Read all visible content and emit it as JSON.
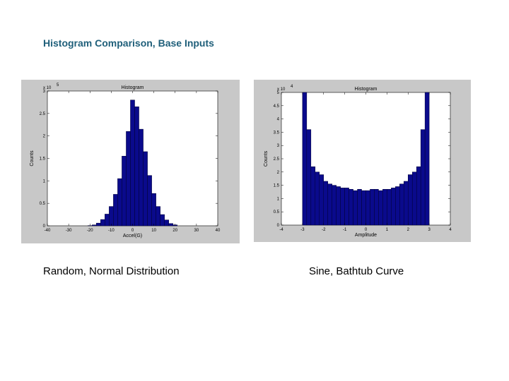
{
  "slide": {
    "title": "Histogram Comparison, Base Inputs",
    "caption_left": "Random, Normal Distribution",
    "caption_right": "Sine, Bathtub Curve"
  },
  "colors": {
    "bar_fill": "#0a0a8c",
    "bar_stroke": "#000033",
    "figure_bg": "#c8c8c8",
    "axes_bg": "#ffffff",
    "title_color": "#1f5f7a"
  },
  "chart_data": [
    {
      "type": "bar",
      "title": "Histogram",
      "xlabel": "Accel(G)",
      "ylabel": "Counts",
      "exponent_label": "x 10",
      "exponent_power": "5",
      "xlim": [
        -40,
        40
      ],
      "ylim": [
        0,
        3
      ],
      "xticks": [
        "-40",
        "-30",
        "-20",
        "-10",
        "0",
        "10",
        "20",
        "30",
        "40"
      ],
      "yticks": [
        "0",
        "0.5",
        "1",
        "1.5",
        "2",
        "2.5",
        "3"
      ],
      "bin_width": 2,
      "bin_centers": [
        -20,
        -18,
        -16,
        -14,
        -12,
        -10,
        -8,
        -6,
        -4,
        -2,
        0,
        2,
        4,
        6,
        8,
        10,
        12,
        14,
        16,
        18,
        20
      ],
      "values": [
        0.005,
        0.02,
        0.06,
        0.14,
        0.26,
        0.43,
        0.7,
        1.05,
        1.55,
        2.1,
        2.8,
        2.65,
        2.15,
        1.65,
        1.12,
        0.72,
        0.43,
        0.25,
        0.13,
        0.05,
        0.02
      ]
    },
    {
      "type": "bar",
      "title": "Histogram",
      "xlabel": "Amplitude",
      "ylabel": "Counts",
      "exponent_label": "x 10",
      "exponent_power": "4",
      "xlim": [
        -4,
        4
      ],
      "ylim": [
        0,
        5
      ],
      "xticks": [
        "-4",
        "-3",
        "-2",
        "-1",
        "0",
        "1",
        "2",
        "3",
        "4"
      ],
      "yticks": [
        "0",
        "0.5",
        "1",
        "1.5",
        "2",
        "2.5",
        "3",
        "3.5",
        "4",
        "4.5",
        "5"
      ],
      "bin_edges": [
        -3.0,
        -2.8,
        -2.6,
        -2.4,
        -2.2,
        -2.0,
        -1.8,
        -1.6,
        -1.4,
        -1.2,
        -1.0,
        -0.8,
        -0.6,
        -0.4,
        -0.2,
        0.0,
        0.2,
        0.4,
        0.6,
        0.8,
        1.0,
        1.2,
        1.4,
        1.6,
        1.8,
        2.0,
        2.2,
        2.4,
        2.6,
        2.8,
        3.0
      ],
      "values": [
        5.0,
        3.6,
        2.2,
        2.0,
        1.9,
        1.65,
        1.55,
        1.5,
        1.45,
        1.4,
        1.4,
        1.35,
        1.3,
        1.35,
        1.3,
        1.3,
        1.35,
        1.35,
        1.3,
        1.35,
        1.35,
        1.4,
        1.45,
        1.55,
        1.65,
        1.9,
        2.0,
        2.2,
        3.6,
        5.0
      ]
    }
  ]
}
